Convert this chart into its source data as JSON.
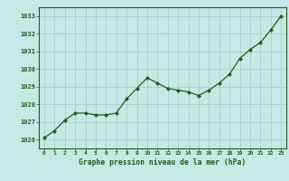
{
  "x": [
    0,
    1,
    2,
    3,
    4,
    5,
    6,
    7,
    8,
    9,
    10,
    11,
    12,
    13,
    14,
    15,
    16,
    17,
    18,
    19,
    20,
    21,
    22,
    23
  ],
  "y": [
    1026.1,
    1026.5,
    1027.1,
    1027.5,
    1027.5,
    1027.4,
    1027.4,
    1027.5,
    1028.3,
    1028.9,
    1029.5,
    1029.2,
    1028.9,
    1028.8,
    1028.7,
    1028.5,
    1028.8,
    1029.2,
    1029.7,
    1030.6,
    1031.1,
    1031.5,
    1032.2,
    1033.0
  ],
  "line_color": "#1a5e1a",
  "marker_color": "#1a5e1a",
  "bg_color": "#c8e8e5",
  "grid_color": "#a8cece",
  "xlabel": "Graphe pression niveau de la mer (hPa)",
  "xlabel_color": "#1a5e1a",
  "tick_color": "#1a5e1a",
  "ylim": [
    1025.5,
    1033.5
  ],
  "yticks": [
    1026,
    1027,
    1028,
    1029,
    1030,
    1031,
    1032,
    1033
  ],
  "xticks": [
    0,
    1,
    2,
    3,
    4,
    5,
    6,
    7,
    8,
    9,
    10,
    11,
    12,
    13,
    14,
    15,
    16,
    17,
    18,
    19,
    20,
    21,
    22,
    23
  ],
  "axis_border_color": "#1a5e1a"
}
